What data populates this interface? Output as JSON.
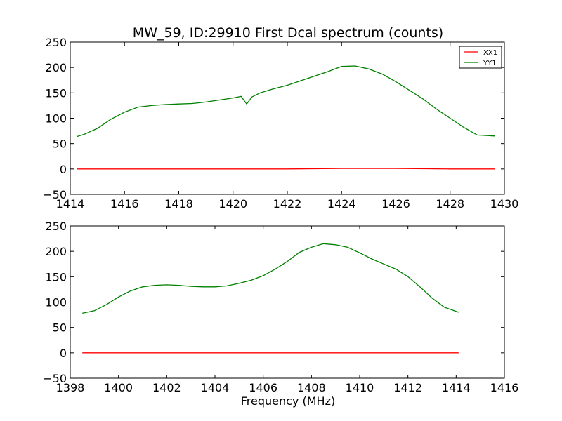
{
  "title": "MW_59, ID:29910 First Dcal spectrum (counts)",
  "chart_data": [
    {
      "type": "line",
      "panel": "top",
      "title": "MW_59, ID:29910 First Dcal spectrum (counts)",
      "xlabel": "",
      "ylabel": "",
      "xlim": [
        1414,
        1430
      ],
      "ylim": [
        -50,
        250
      ],
      "xticks": [
        1414,
        1416,
        1418,
        1420,
        1422,
        1424,
        1426,
        1428,
        1430
      ],
      "yticks": [
        -50,
        0,
        50,
        100,
        150,
        200,
        250
      ],
      "grid": false,
      "legend": {
        "placement": "top-right",
        "entries": [
          "XX1",
          "YY1"
        ]
      },
      "series": [
        {
          "name": "XX1",
          "color": "#ff0000",
          "x": [
            1414.25,
            1416,
            1418,
            1420,
            1422,
            1424,
            1426,
            1428,
            1429.65
          ],
          "y": [
            0,
            0,
            0,
            0,
            0,
            1,
            1,
            0,
            0
          ]
        },
        {
          "name": "YY1",
          "color": "#008000",
          "x": [
            1414.25,
            1414.5,
            1415,
            1415.5,
            1416,
            1416.5,
            1417,
            1417.5,
            1418,
            1418.5,
            1419,
            1419.5,
            1420,
            1420.3,
            1420.5,
            1420.7,
            1421,
            1421.5,
            1422,
            1422.5,
            1423,
            1423.5,
            1424,
            1424.5,
            1425,
            1425.5,
            1426,
            1426.5,
            1427,
            1427.5,
            1428,
            1428.5,
            1429,
            1429.65
          ],
          "y": [
            64,
            68,
            80,
            98,
            112,
            122,
            125,
            127,
            128,
            129,
            132,
            136,
            140,
            143,
            128,
            142,
            150,
            158,
            165,
            174,
            183,
            192,
            202,
            203,
            197,
            187,
            172,
            155,
            138,
            118,
            100,
            82,
            67,
            65
          ]
        }
      ]
    },
    {
      "type": "line",
      "panel": "bottom",
      "title": "",
      "xlabel": "Frequency (MHz)",
      "ylabel": "",
      "xlim": [
        1398,
        1416
      ],
      "ylim": [
        -50,
        250
      ],
      "xticks": [
        1398,
        1400,
        1402,
        1404,
        1406,
        1408,
        1410,
        1412,
        1414,
        1416
      ],
      "yticks": [
        -50,
        0,
        50,
        100,
        150,
        200,
        250
      ],
      "grid": false,
      "series": [
        {
          "name": "XX1",
          "color": "#ff0000",
          "x": [
            1398.5,
            1400,
            1402,
            1404,
            1406,
            1408,
            1410,
            1412,
            1414.1
          ],
          "y": [
            0,
            0,
            0,
            0,
            0,
            0,
            0,
            0,
            0
          ]
        },
        {
          "name": "YY1",
          "color": "#008000",
          "x": [
            1398.5,
            1399,
            1399.5,
            1400,
            1400.5,
            1401,
            1401.5,
            1402,
            1402.5,
            1403,
            1403.5,
            1404,
            1404.5,
            1405,
            1405.5,
            1406,
            1406.5,
            1407,
            1407.5,
            1408,
            1408.5,
            1409,
            1409.5,
            1410,
            1410.5,
            1411,
            1411.5,
            1412,
            1412.5,
            1413,
            1413.5,
            1414.1
          ],
          "y": [
            78,
            83,
            95,
            110,
            122,
            130,
            133,
            134,
            133,
            131,
            130,
            130,
            132,
            137,
            143,
            152,
            165,
            180,
            198,
            208,
            215,
            213,
            208,
            197,
            185,
            175,
            165,
            150,
            130,
            108,
            90,
            80
          ]
        }
      ]
    }
  ]
}
